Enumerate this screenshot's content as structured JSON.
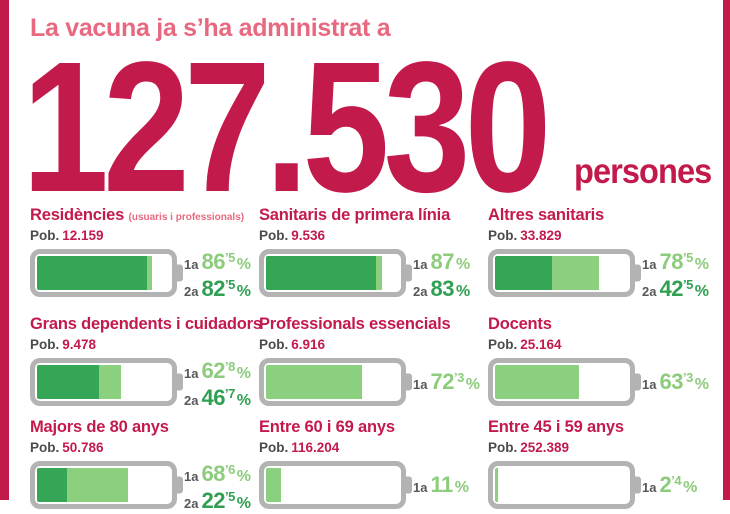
{
  "header": {
    "subtitle": "La vacuna ja s’ha administrat a",
    "number": "127.530",
    "unit": "persones"
  },
  "labels": {
    "pob": "Pob.",
    "dose1": "1a",
    "dose2": "2a",
    "pct_sign": "%"
  },
  "colors": {
    "crimson": "#c31a4c",
    "pink": "#e8697f",
    "green_dark": "#35a556",
    "green_light": "#8bd07e",
    "battery_border": "#b3b3b3",
    "gray_text": "#57585a"
  },
  "categories": [
    {
      "title": "Residències",
      "note": "(usuaris i professionals)",
      "pob": "12.159",
      "d1": {
        "num": "86",
        "sup": "’5",
        "pct": 86.5
      },
      "d2": {
        "num": "82",
        "sup": "’5",
        "pct": 82.5
      }
    },
    {
      "title": "Sanitaris de primera línia",
      "note": "",
      "pob": "9.536",
      "d1": {
        "num": "87",
        "sup": "",
        "pct": 87
      },
      "d2": {
        "num": "83",
        "sup": "",
        "pct": 83
      }
    },
    {
      "title": "Altres sanitaris",
      "note": "",
      "pob": "33.829",
      "d1": {
        "num": "78",
        "sup": "’5",
        "pct": 78.5
      },
      "d2": {
        "num": "42",
        "sup": "’5",
        "pct": 42.5
      }
    },
    {
      "title": "Grans dependents i cuidadors",
      "note": "",
      "pob": "9.478",
      "d1": {
        "num": "62",
        "sup": "’8",
        "pct": 62.8
      },
      "d2": {
        "num": "46",
        "sup": "’7",
        "pct": 46.7
      }
    },
    {
      "title": "Professionals essencials",
      "note": "",
      "pob": "6.916",
      "d1": {
        "num": "72",
        "sup": "’3",
        "pct": 72.3
      },
      "d2": null
    },
    {
      "title": "Docents",
      "note": "",
      "pob": "25.164",
      "d1": {
        "num": "63",
        "sup": "’3",
        "pct": 63.3
      },
      "d2": null
    },
    {
      "title": "Majors de 80 anys",
      "note": "",
      "pob": "50.786",
      "d1": {
        "num": "68",
        "sup": "’6",
        "pct": 68.6
      },
      "d2": {
        "num": "22",
        "sup": "’5",
        "pct": 22.5
      }
    },
    {
      "title": "Entre 60 i 69 anys",
      "note": "",
      "pob": "116.204",
      "d1": {
        "num": "11",
        "sup": "",
        "pct": 11
      },
      "d2": null
    },
    {
      "title": "Entre 45 i 59 anys",
      "note": "",
      "pob": "252.389",
      "d1": {
        "num": "2",
        "sup": "’4",
        "pct": 2.4
      },
      "d2": null
    }
  ],
  "chart_data": {
    "type": "bar",
    "title": "La vacuna ja s’ha administrat a 127.530 persones",
    "total_administered": 127530,
    "unit": "persones",
    "categories": [
      "Residències (usuaris i professionals)",
      "Sanitaris de primera línia",
      "Altres sanitaris",
      "Grans dependents i cuidadors",
      "Professionals essencials",
      "Docents",
      "Majors de 80 anys",
      "Entre 60 i 69 anys",
      "Entre 45 i 59 anys"
    ],
    "populations": [
      12159,
      9536,
      33829,
      9478,
      6916,
      25164,
      50786,
      116204,
      252389
    ],
    "series": [
      {
        "name": "1a dosi (%)",
        "values": [
          86.5,
          87,
          78.5,
          62.8,
          72.3,
          63.3,
          68.6,
          11,
          2.4
        ]
      },
      {
        "name": "2a dosi (%)",
        "values": [
          82.5,
          83,
          42.5,
          46.7,
          null,
          null,
          22.5,
          null,
          null
        ]
      }
    ],
    "xlim": [
      0,
      100
    ],
    "layout": "3x3 grid of battery gauges, dark green = 2a dosi, light green = 1a dosi"
  }
}
